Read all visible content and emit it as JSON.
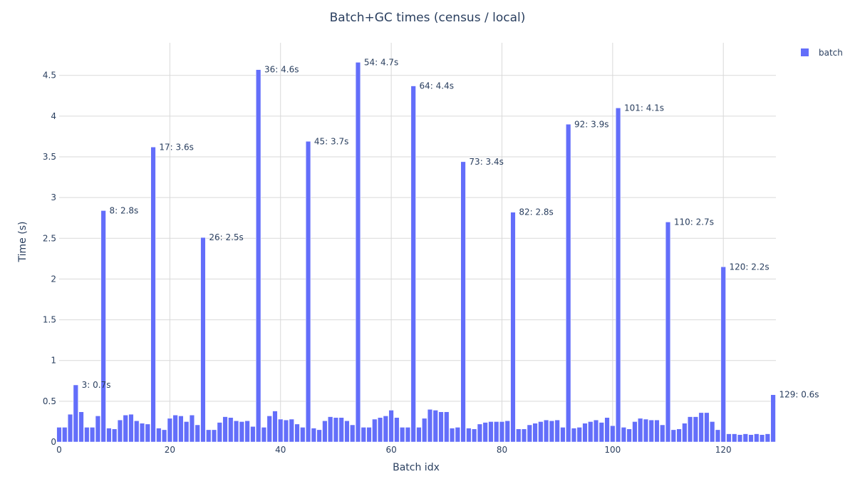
{
  "chart_data": {
    "type": "bar",
    "title": "Batch+GC times (census / local)",
    "xlabel": "Batch idx",
    "ylabel": "Time (s)",
    "xlim": [
      0,
      129.5
    ],
    "ylim": [
      0,
      4.9
    ],
    "xticks": [
      0,
      20,
      40,
      60,
      80,
      100,
      120
    ],
    "yticks": [
      0,
      0.5,
      1,
      1.5,
      2,
      2.5,
      3,
      3.5,
      4,
      4.5
    ],
    "ytick_labels": [
      "0",
      "0.5",
      "1",
      "1.5",
      "2",
      "2.5",
      "3",
      "3.5",
      "4",
      "4.5"
    ],
    "grid": true,
    "legend_position": "top-right",
    "series": [
      {
        "name": "batch",
        "color": "#636efa",
        "values": [
          0.18,
          0.18,
          0.34,
          0.7,
          0.37,
          0.18,
          0.18,
          0.32,
          2.84,
          0.17,
          0.16,
          0.27,
          0.33,
          0.34,
          0.26,
          0.23,
          0.22,
          3.62,
          0.17,
          0.15,
          0.29,
          0.33,
          0.32,
          0.25,
          0.33,
          0.21,
          2.51,
          0.15,
          0.15,
          0.24,
          0.31,
          0.3,
          0.26,
          0.25,
          0.26,
          0.19,
          4.57,
          0.18,
          0.32,
          0.38,
          0.28,
          0.27,
          0.28,
          0.22,
          0.18,
          3.69,
          0.17,
          0.15,
          0.26,
          0.31,
          0.3,
          0.3,
          0.26,
          0.21,
          4.66,
          0.18,
          0.18,
          0.28,
          0.3,
          0.32,
          0.39,
          0.3,
          0.18,
          0.18,
          4.37,
          0.18,
          0.29,
          0.4,
          0.39,
          0.37,
          0.37,
          0.17,
          0.18,
          3.44,
          0.17,
          0.16,
          0.22,
          0.24,
          0.25,
          0.25,
          0.25,
          0.26,
          2.82,
          0.16,
          0.16,
          0.21,
          0.23,
          0.25,
          0.27,
          0.26,
          0.27,
          0.18,
          3.9,
          0.17,
          0.18,
          0.23,
          0.25,
          0.27,
          0.24,
          0.3,
          0.2,
          4.1,
          0.18,
          0.16,
          0.25,
          0.29,
          0.28,
          0.27,
          0.27,
          0.21,
          2.7,
          0.15,
          0.16,
          0.23,
          0.31,
          0.31,
          0.36,
          0.36,
          0.25,
          0.15,
          2.15,
          0.1,
          0.1,
          0.09,
          0.1,
          0.09,
          0.1,
          0.09,
          0.1,
          0.58
        ]
      }
    ],
    "annotations": [
      {
        "x": 3,
        "y": 0.7,
        "text": "3: 0.7s"
      },
      {
        "x": 8,
        "y": 2.84,
        "text": "8: 2.8s"
      },
      {
        "x": 17,
        "y": 3.62,
        "text": "17: 3.6s"
      },
      {
        "x": 26,
        "y": 2.51,
        "text": "26: 2.5s"
      },
      {
        "x": 36,
        "y": 4.57,
        "text": "36: 4.6s"
      },
      {
        "x": 45,
        "y": 3.69,
        "text": "45: 3.7s"
      },
      {
        "x": 54,
        "y": 4.66,
        "text": "54: 4.7s"
      },
      {
        "x": 64,
        "y": 4.37,
        "text": "64: 4.4s"
      },
      {
        "x": 73,
        "y": 3.44,
        "text": "73: 3.4s"
      },
      {
        "x": 82,
        "y": 2.82,
        "text": "82: 2.8s"
      },
      {
        "x": 92,
        "y": 3.9,
        "text": "92: 3.9s"
      },
      {
        "x": 101,
        "y": 4.1,
        "text": "101: 4.1s"
      },
      {
        "x": 110,
        "y": 2.7,
        "text": "110: 2.7s"
      },
      {
        "x": 120,
        "y": 2.15,
        "text": "120: 2.2s"
      },
      {
        "x": 129,
        "y": 0.58,
        "text": "129: 0.6s"
      }
    ]
  }
}
